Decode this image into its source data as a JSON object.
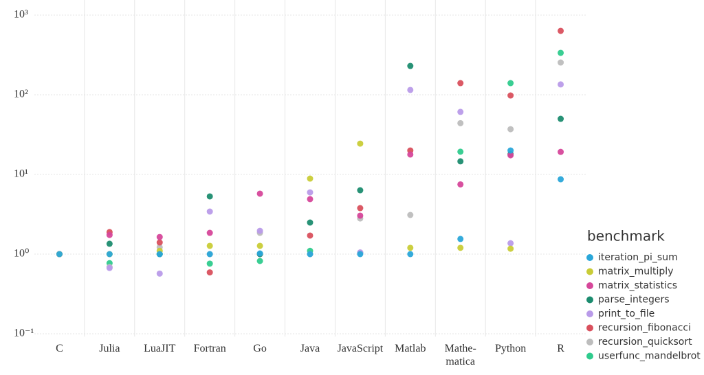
{
  "chart_data": {
    "type": "scatter",
    "categories": [
      "C",
      "Julia",
      "LuaJIT",
      "Fortran",
      "Go",
      "Java",
      "JavaScript",
      "Matlab",
      "Mathe-matica",
      "Python",
      "R"
    ],
    "ylim": [
      0.1,
      1000
    ],
    "log_y": true,
    "grid": true,
    "yticks": [
      {
        "value": 0.1,
        "label": "10⁻¹"
      },
      {
        "value": 1,
        "label": "10⁰"
      },
      {
        "value": 10,
        "label": "10¹"
      },
      {
        "value": 100,
        "label": "10²"
      },
      {
        "value": 1000,
        "label": "10³"
      }
    ],
    "legend_title": "benchmark",
    "legend_position": "right",
    "series": [
      {
        "name": "iteration_pi_sum",
        "color": "#2aa7d9",
        "values": [
          1,
          1,
          1,
          1,
          1.02,
          1,
          1,
          1,
          1.55,
          20,
          8.7
        ]
      },
      {
        "name": "matrix_multiply",
        "color": "#c9cc37",
        "values": [
          1,
          1,
          1.1,
          1.27,
          1.27,
          8.87,
          24.4,
          1.2,
          1.2,
          1.17,
          null
        ]
      },
      {
        "name": "matrix_statistics",
        "color": "#d6479a",
        "values": [
          1,
          1.74,
          1.64,
          1.85,
          5.74,
          4.9,
          3.04,
          17.8,
          7.5,
          17.4,
          19.2
        ]
      },
      {
        "name": "parse_integers",
        "color": "#1c8c6f",
        "values": [
          1,
          1.35,
          1,
          5.3,
          1,
          2.49,
          6.33,
          230,
          14.6,
          18,
          49.9
        ]
      },
      {
        "name": "print_to_file",
        "color": "#b99be9",
        "values": [
          1,
          0.67,
          0.57,
          3.42,
          1.96,
          5.96,
          1.05,
          115,
          61,
          1.37,
          135
        ]
      },
      {
        "name": "recursion_fibonacci",
        "color": "#d9505d",
        "values": [
          1,
          1.89,
          1.4,
          0.59,
          1,
          1.71,
          3.78,
          20,
          140,
          98,
          634
        ]
      },
      {
        "name": "recursion_quicksort",
        "color": "#bdbdbd",
        "values": [
          1,
          0.69,
          1.22,
          1,
          1.85,
          1,
          2.8,
          3.1,
          44,
          37,
          254
        ]
      },
      {
        "name": "userfunc_mandelbrot",
        "color": "#2fcb8d",
        "values": [
          1,
          0.77,
          1,
          0.76,
          0.82,
          1.1,
          1.04,
          null,
          19.3,
          140,
          336
        ]
      }
    ]
  }
}
